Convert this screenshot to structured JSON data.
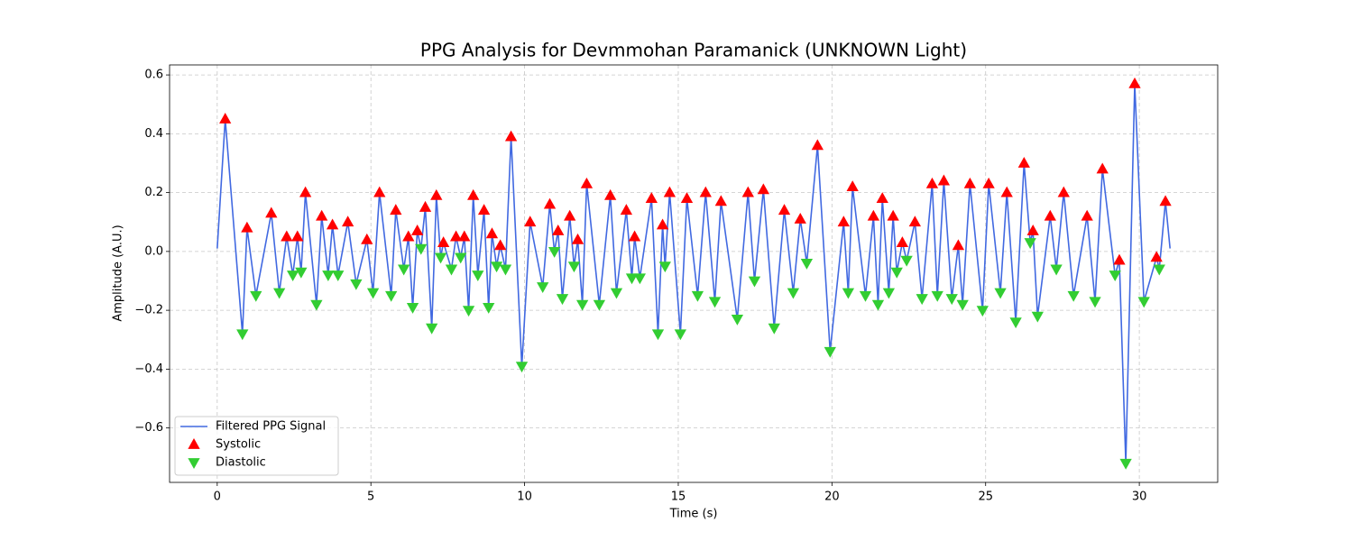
{
  "chart_data": {
    "type": "line",
    "title": "PPG Analysis for Devmmohan Paramanick (UNKNOWN Light)",
    "x_label": "Time (s)",
    "y_label": "Amplitude (A.U.)",
    "xlim": [
      -1.55,
      32.55
    ],
    "ylim": [
      -0.785,
      0.634
    ],
    "xticks": [
      0,
      5,
      10,
      15,
      20,
      25,
      30
    ],
    "yticks": [
      {
        "value": -0.6,
        "label": "−0.6"
      },
      {
        "value": -0.4,
        "label": "−0.4"
      },
      {
        "value": -0.2,
        "label": "−0.2"
      },
      {
        "value": 0,
        "label": "0.0"
      },
      0.2,
      0.4,
      0.6
    ],
    "grid": true,
    "legend": "lower left",
    "series": [
      {
        "name": "Filtered PPG Signal",
        "type": "line",
        "color": "#4169e1",
        "x": [
          0,
          0.26,
          0.82,
          0.97,
          1.26,
          1.76,
          2.02,
          2.26,
          2.46,
          2.61,
          2.73,
          2.87,
          3.23,
          3.4,
          3.61,
          3.75,
          3.93,
          4.25,
          4.52,
          4.87,
          5.07,
          5.28,
          5.66,
          5.81,
          6.07,
          6.22,
          6.36,
          6.51,
          6.63,
          6.77,
          6.98,
          7.13,
          7.27,
          7.36,
          7.62,
          7.77,
          7.92,
          8.04,
          8.18,
          8.33,
          8.48,
          8.68,
          8.83,
          8.94,
          9.09,
          9.21,
          9.38,
          9.56,
          9.91,
          10.18,
          10.59,
          10.82,
          10.97,
          11.09,
          11.23,
          11.47,
          11.61,
          11.73,
          11.88,
          12.02,
          12.43,
          12.79,
          12.99,
          13.31,
          13.49,
          13.58,
          13.75,
          14.13,
          14.34,
          14.49,
          14.57,
          14.72,
          15.07,
          15.28,
          15.63,
          15.89,
          16.19,
          16.39,
          16.92,
          17.27,
          17.48,
          17.77,
          18.12,
          18.45,
          18.74,
          18.97,
          19.18,
          19.53,
          19.94,
          20.38,
          20.53,
          20.67,
          21.09,
          21.35,
          21.5,
          21.64,
          21.85,
          21.99,
          22.11,
          22.29,
          22.43,
          22.7,
          22.93,
          23.26,
          23.43,
          23.64,
          23.9,
          24.11,
          24.25,
          24.49,
          24.9,
          25.1,
          25.48,
          25.69,
          25.98,
          26.25,
          26.45,
          26.54,
          26.69,
          27.1,
          27.3,
          27.54,
          27.86,
          28.3,
          28.56,
          28.8,
          29.21,
          29.35,
          29.56,
          29.85,
          30.15,
          30.56,
          30.65,
          30.85,
          31
        ],
        "values": [
          0.01,
          0.45,
          -0.28,
          0.08,
          -0.15,
          0.13,
          -0.14,
          0.05,
          -0.08,
          0.05,
          -0.07,
          0.2,
          -0.18,
          0.12,
          -0.08,
          0.09,
          -0.08,
          0.1,
          -0.11,
          0.04,
          -0.14,
          0.2,
          -0.15,
          0.14,
          -0.06,
          0.05,
          -0.19,
          0.07,
          0.01,
          0.15,
          -0.26,
          0.19,
          -0.02,
          0.03,
          -0.06,
          0.05,
          -0.02,
          0.05,
          -0.2,
          0.19,
          -0.08,
          0.14,
          -0.19,
          0.06,
          -0.05,
          0.02,
          -0.06,
          0.39,
          -0.39,
          0.1,
          -0.12,
          0.16,
          0,
          0.07,
          -0.16,
          0.12,
          -0.05,
          0.04,
          -0.18,
          0.23,
          -0.18,
          0.19,
          -0.14,
          0.14,
          -0.09,
          0.05,
          -0.09,
          0.18,
          -0.28,
          0.09,
          -0.05,
          0.2,
          -0.28,
          0.18,
          -0.15,
          0.2,
          -0.17,
          0.17,
          -0.23,
          0.2,
          -0.1,
          0.21,
          -0.26,
          0.14,
          -0.14,
          0.11,
          -0.04,
          0.36,
          -0.34,
          0.1,
          -0.14,
          0.22,
          -0.15,
          0.12,
          -0.18,
          0.18,
          -0.14,
          0.12,
          -0.07,
          0.03,
          -0.03,
          0.1,
          -0.16,
          0.23,
          -0.15,
          0.24,
          -0.16,
          0.02,
          -0.18,
          0.23,
          -0.2,
          0.23,
          -0.14,
          0.2,
          -0.24,
          0.3,
          0.03,
          0.07,
          -0.22,
          0.12,
          -0.06,
          0.2,
          -0.15,
          0.12,
          -0.17,
          0.28,
          -0.08,
          -0.03,
          -0.72,
          0.57,
          -0.17,
          -0.02,
          -0.06,
          0.17,
          0.01
        ]
      },
      {
        "name": "Systolic",
        "type": "scatter",
        "marker": "^",
        "color": "#ff0000",
        "x": [
          0.26,
          0.97,
          1.76,
          2.26,
          2.61,
          2.87,
          3.4,
          3.75,
          4.25,
          4.87,
          5.28,
          5.81,
          6.22,
          6.51,
          6.77,
          7.13,
          7.36,
          7.77,
          8.04,
          8.33,
          8.68,
          8.94,
          9.21,
          9.56,
          10.18,
          10.82,
          11.09,
          11.47,
          11.73,
          12.02,
          12.79,
          13.31,
          13.58,
          14.13,
          14.49,
          14.72,
          15.28,
          15.89,
          16.39,
          17.27,
          17.77,
          18.45,
          18.97,
          19.53,
          20.38,
          20.67,
          21.35,
          21.64,
          21.99,
          22.29,
          22.7,
          23.26,
          23.64,
          24.11,
          24.49,
          25.1,
          25.69,
          26.25,
          26.54,
          27.1,
          27.54,
          28.3,
          28.8,
          29.35,
          29.85,
          30.56,
          30.85
        ],
        "values": [
          0.45,
          0.08,
          0.13,
          0.05,
          0.05,
          0.2,
          0.12,
          0.09,
          0.1,
          0.04,
          0.2,
          0.14,
          0.05,
          0.07,
          0.15,
          0.19,
          0.03,
          0.05,
          0.05,
          0.19,
          0.14,
          0.06,
          0.02,
          0.39,
          0.1,
          0.16,
          0.07,
          0.12,
          0.04,
          0.23,
          0.19,
          0.14,
          0.05,
          0.18,
          0.09,
          0.2,
          0.18,
          0.2,
          0.17,
          0.2,
          0.21,
          0.14,
          0.11,
          0.36,
          0.1,
          0.22,
          0.12,
          0.18,
          0.12,
          0.03,
          0.1,
          0.23,
          0.24,
          0.02,
          0.23,
          0.23,
          0.2,
          0.3,
          0.07,
          0.12,
          0.2,
          0.12,
          0.28,
          -0.03,
          0.57,
          -0.02,
          0.17
        ]
      },
      {
        "name": "Diastolic",
        "type": "scatter",
        "marker": "v",
        "color": "#32cd32",
        "x": [
          0.82,
          1.26,
          2.02,
          2.46,
          2.73,
          3.23,
          3.61,
          3.93,
          4.52,
          5.07,
          5.66,
          6.07,
          6.36,
          6.63,
          6.98,
          7.27,
          7.62,
          7.92,
          8.18,
          8.48,
          8.83,
          9.09,
          9.38,
          9.91,
          10.59,
          10.97,
          11.23,
          11.61,
          11.88,
          12.43,
          12.99,
          13.49,
          13.75,
          14.34,
          14.57,
          15.07,
          15.63,
          16.19,
          16.92,
          17.48,
          18.12,
          18.74,
          19.18,
          19.94,
          20.53,
          21.09,
          21.5,
          21.85,
          22.11,
          22.43,
          22.93,
          23.43,
          23.9,
          24.25,
          24.9,
          25.48,
          25.98,
          26.45,
          26.69,
          27.3,
          27.86,
          28.56,
          29.21,
          29.56,
          30.15,
          30.65
        ],
        "values": [
          -0.28,
          -0.15,
          -0.14,
          -0.08,
          -0.07,
          -0.18,
          -0.08,
          -0.08,
          -0.11,
          -0.14,
          -0.15,
          -0.06,
          -0.19,
          0.01,
          -0.26,
          -0.02,
          -0.06,
          -0.02,
          -0.2,
          -0.08,
          -0.19,
          -0.05,
          -0.06,
          -0.39,
          -0.12,
          0,
          -0.16,
          -0.05,
          -0.18,
          -0.18,
          -0.14,
          -0.09,
          -0.09,
          -0.28,
          -0.05,
          -0.28,
          -0.15,
          -0.17,
          -0.23,
          -0.1,
          -0.26,
          -0.14,
          -0.04,
          -0.34,
          -0.14,
          -0.15,
          -0.18,
          -0.14,
          -0.07,
          -0.03,
          -0.16,
          -0.15,
          -0.16,
          -0.18,
          -0.2,
          -0.14,
          -0.24,
          0.03,
          -0.22,
          -0.06,
          -0.15,
          -0.17,
          -0.08,
          -0.72,
          -0.17,
          -0.06
        ]
      }
    ]
  }
}
